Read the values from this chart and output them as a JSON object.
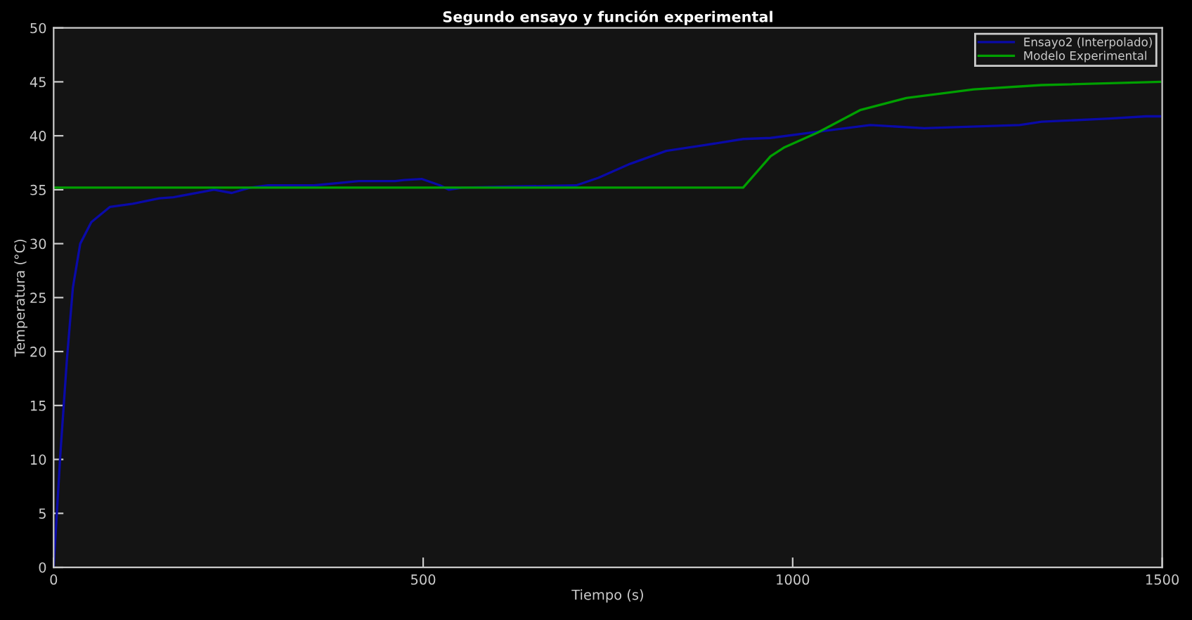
{
  "chart_data": {
    "type": "line",
    "title": "Segundo ensayo y función experimental",
    "xlabel": "Tiempo (s)",
    "ylabel": "Temperatura (°C)",
    "xlim": [
      0,
      1500
    ],
    "ylim": [
      0,
      50
    ],
    "xticks": [
      0,
      500,
      1000,
      1500
    ],
    "yticks": [
      0,
      5,
      10,
      15,
      20,
      25,
      30,
      35,
      40,
      45,
      50
    ],
    "grid": false,
    "legend": "top right",
    "line_style": "solid",
    "marker": "none",
    "series": [
      {
        "name": "Ensayo2 (Interpolado)",
        "color": "#0a0aa8",
        "x": [
          0,
          9,
          18,
          26,
          36,
          51,
          76,
          107,
          143,
          162,
          217,
          241,
          266,
          290,
          352,
          413,
          462,
          474,
          498,
          523,
          535,
          553,
          627,
          707,
          737,
          780,
          829,
          878,
          933,
          970,
          1025,
          1105,
          1178,
          1307,
          1337,
          1429,
          1478,
          1497
        ],
        "values": [
          0,
          10.4,
          19.3,
          25.9,
          30,
          32,
          33.4,
          33.7,
          34.2,
          34.3,
          35.0,
          34.7,
          35.2,
          35.4,
          35.4,
          35.8,
          35.8,
          35.9,
          36.0,
          35.4,
          35.0,
          35.2,
          35.3,
          35.4,
          36.1,
          37.4,
          38.6,
          39.1,
          39.7,
          39.8,
          40.3,
          41.0,
          40.7,
          41.0,
          41.3,
          41.6,
          41.8,
          41.8
        ]
      },
      {
        "name": "Modelo Experimental",
        "color": "#00a000",
        "x": [
          0,
          933,
          970,
          988,
          1034,
          1092,
          1154,
          1245,
          1337,
          1497
        ],
        "values": [
          35.2,
          35.2,
          38.1,
          38.9,
          40.3,
          42.4,
          43.5,
          44.3,
          44.7,
          45.0
        ]
      }
    ]
  }
}
